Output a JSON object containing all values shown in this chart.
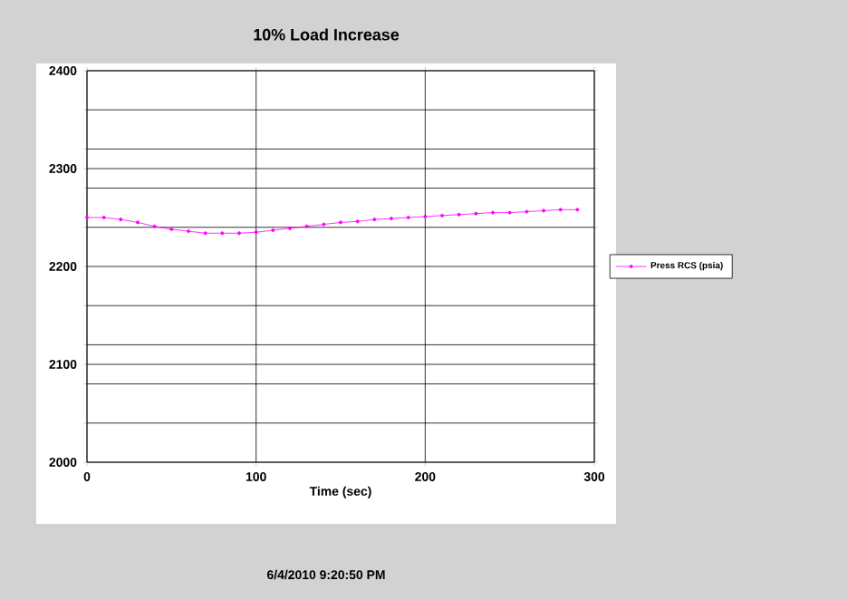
{
  "chart_data": {
    "type": "line",
    "title": "10% Load Increase",
    "xlabel": "Time (sec)",
    "annotations": [
      "6/4/2010 9:20:50 PM"
    ],
    "x": [
      0,
      10,
      20,
      30,
      40,
      50,
      60,
      70,
      80,
      90,
      100,
      110,
      120,
      130,
      140,
      150,
      160,
      170,
      180,
      190,
      200,
      210,
      220,
      230,
      240,
      250,
      260,
      270,
      280,
      290
    ],
    "series": [
      {
        "name": "Press RCS (psia)",
        "color": "#ff00ff",
        "values": [
          2250,
          2250,
          2248,
          2245,
          2241,
          2238,
          2236,
          2234,
          2234,
          2234,
          2235,
          2237,
          2239,
          2241,
          2243,
          2245,
          2246,
          2248,
          2249,
          2250,
          2251,
          2252,
          2253,
          2254,
          2255,
          2255,
          2256,
          2257,
          2258,
          2258
        ]
      }
    ],
    "xlim": [
      0,
      300
    ],
    "xticks": [
      0,
      100,
      200,
      300
    ],
    "ylim": [
      2000,
      2400
    ],
    "yticks": [
      2000,
      {
        "value": 2040,
        "label": null
      },
      {
        "value": 2080,
        "label": null
      },
      2100,
      {
        "value": 2120,
        "label": null
      },
      {
        "value": 2160,
        "label": null
      },
      2200,
      {
        "value": 2240,
        "label": null
      },
      {
        "value": 2280,
        "label": null
      },
      2300,
      {
        "value": 2320,
        "label": null
      },
      {
        "value": 2360,
        "label": null
      },
      2400
    ],
    "grid": true,
    "legend": "right",
    "marker": "circle",
    "line_style": "solid"
  }
}
